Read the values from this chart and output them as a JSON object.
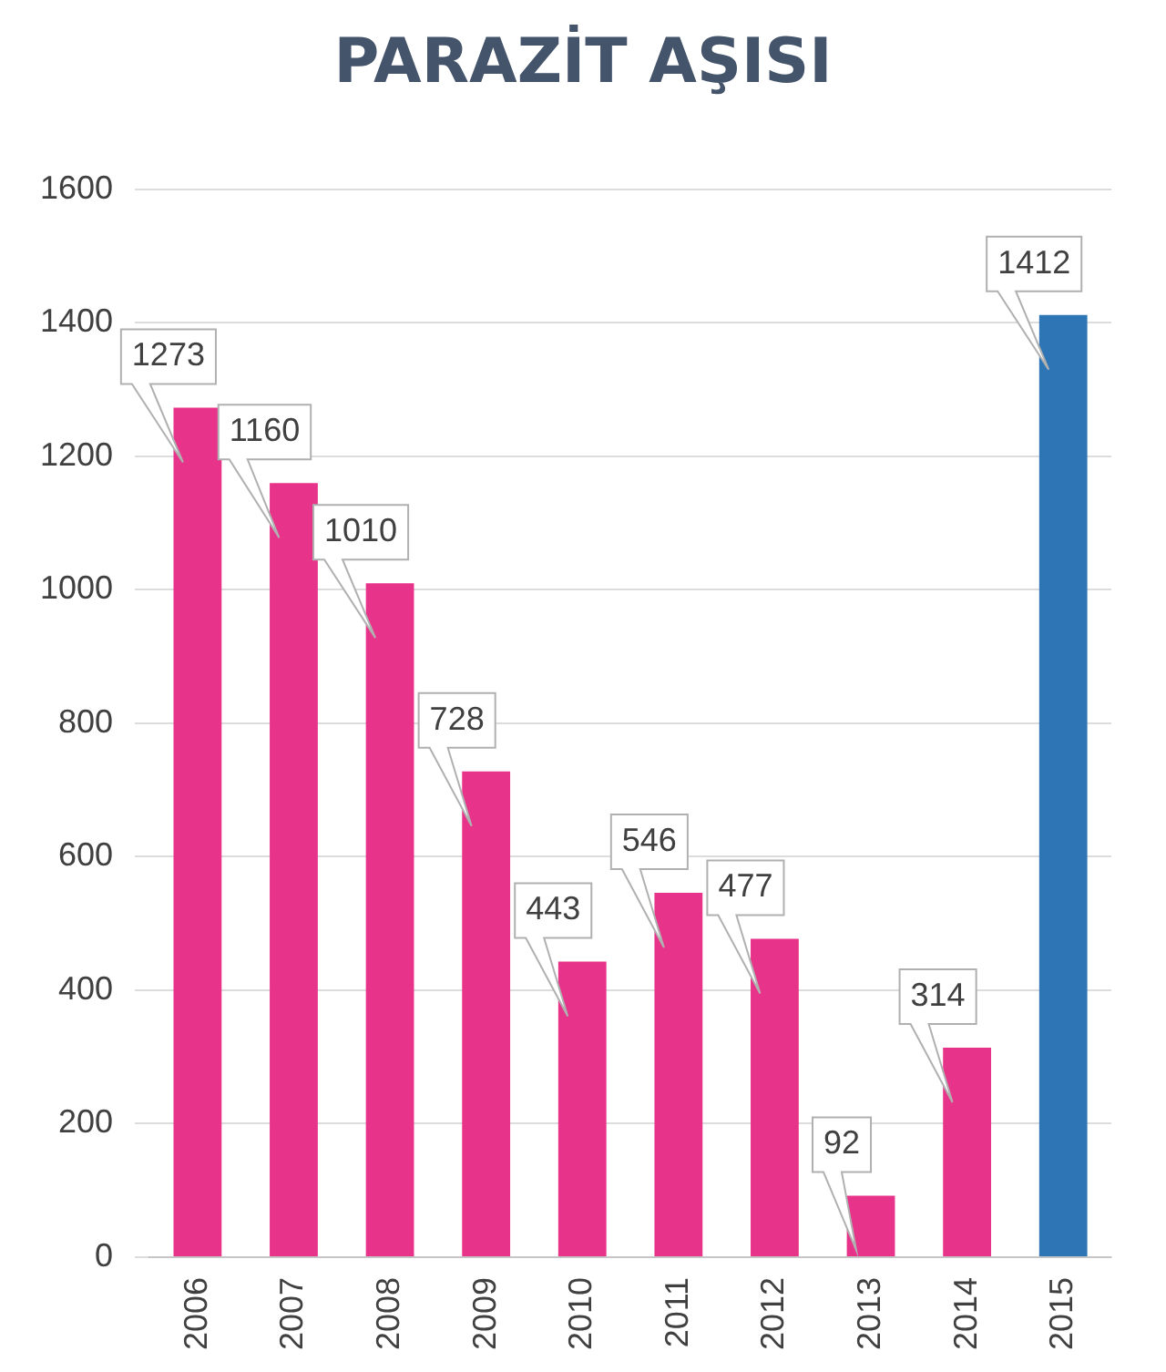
{
  "chart_data": {
    "type": "bar",
    "title": "PARAZİT AŞISI",
    "categories": [
      "2006",
      "2007",
      "2008",
      "2009",
      "2010",
      "2011",
      "2012",
      "2013",
      "2014",
      "2015"
    ],
    "values": [
      1273,
      1160,
      1010,
      728,
      443,
      546,
      477,
      92,
      314,
      1412
    ],
    "colors": [
      "#e8338a",
      "#e8338a",
      "#e8338a",
      "#e8338a",
      "#e8338a",
      "#e8338a",
      "#e8338a",
      "#e8338a",
      "#e8338a",
      "#2e75b6"
    ],
    "ylim": [
      0,
      1600
    ],
    "yticks": [
      0,
      200,
      400,
      600,
      800,
      1000,
      1200,
      1400,
      1600
    ],
    "grid": "y",
    "data_labels": true
  }
}
